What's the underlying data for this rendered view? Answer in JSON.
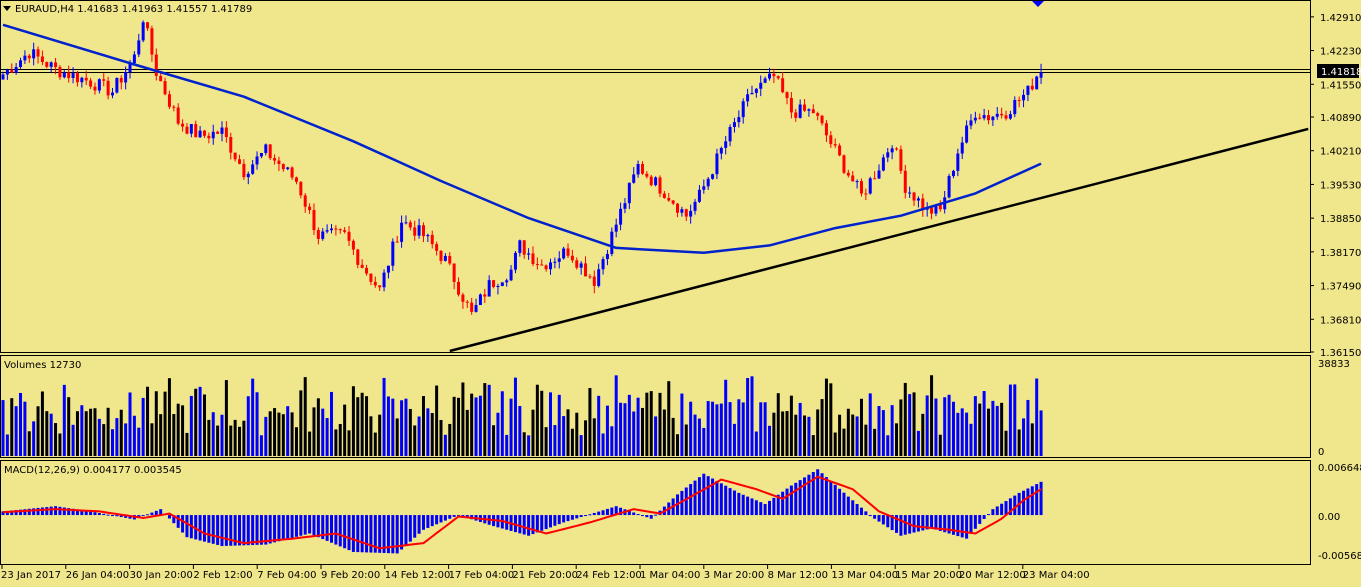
{
  "header": {
    "symbol_line": "EURAUD,H4  1.41683 1.41963 1.41557 1.41789"
  },
  "volume_panel": {
    "label": "Volumes 12730",
    "max_label": "38833",
    "zero_label": "0"
  },
  "macd_panel": {
    "label": "MACD(12,26,9) 0.004177 0.003545",
    "axis_labels": [
      "0.006648",
      "0.00",
      "-0.005685"
    ]
  },
  "price_axis": {
    "labels": [
      "1.42910",
      "1.42230",
      "1.41550",
      "1.40890",
      "1.40210",
      "1.39530",
      "1.38850",
      "1.38170",
      "1.37490",
      "1.36810",
      "1.36150"
    ],
    "current_price": "1.41818"
  },
  "time_axis": {
    "labels": [
      "23 Jan 2017",
      "26 Jan 04:00",
      "30 Jan 20:00",
      "2 Feb 12:00",
      "7 Feb 04:00",
      "9 Feb 20:00",
      "14 Feb 12:00",
      "17 Feb 04:00",
      "21 Feb 20:00",
      "24 Feb 12:00",
      "1 Mar 04:00",
      "3 Mar 20:00",
      "8 Mar 12:00",
      "13 Mar 04:00",
      "15 Mar 20:00",
      "20 Mar 12:00",
      "23 Mar 04:00"
    ]
  },
  "colors": {
    "background": "#F0E68C",
    "bull": "#0000FF",
    "bear": "#FF0000",
    "ma": "#0022CC",
    "trendline": "#000000",
    "macd_hist": "#0000FF",
    "macd_signal": "#FF0000"
  },
  "icons": {
    "collapse": "triangle-down-icon",
    "marker": "triangle-down-icon"
  },
  "chart_data": {
    "type": "candlestick",
    "symbol": "EURAUD",
    "timeframe": "H4",
    "ohlc_last": {
      "open": 1.41683,
      "high": 1.41963,
      "low": 1.41557,
      "close": 1.41789
    },
    "horizontal_line": 1.41818,
    "y_range": [
      1.3615,
      1.4325
    ],
    "anchors": [
      {
        "i": 0,
        "p": 1.4175
      },
      {
        "i": 6,
        "p": 1.422
      },
      {
        "i": 12,
        "p": 1.4185
      },
      {
        "i": 20,
        "p": 1.416
      },
      {
        "i": 25,
        "p": 1.414
      },
      {
        "i": 30,
        "p": 1.421
      },
      {
        "i": 32,
        "p": 1.429
      },
      {
        "i": 35,
        "p": 1.418
      },
      {
        "i": 40,
        "p": 1.408
      },
      {
        "i": 45,
        "p": 1.405
      },
      {
        "i": 50,
        "p": 1.406
      },
      {
        "i": 55,
        "p": 1.398
      },
      {
        "i": 60,
        "p": 1.402
      },
      {
        "i": 67,
        "p": 1.396
      },
      {
        "i": 72,
        "p": 1.385
      },
      {
        "i": 78,
        "p": 1.385
      },
      {
        "i": 82,
        "p": 1.379
      },
      {
        "i": 86,
        "p": 1.374
      },
      {
        "i": 91,
        "p": 1.388
      },
      {
        "i": 96,
        "p": 1.385
      },
      {
        "i": 101,
        "p": 1.38
      },
      {
        "i": 107,
        "p": 1.369
      },
      {
        "i": 111,
        "p": 1.375
      },
      {
        "i": 116,
        "p": 1.378
      },
      {
        "i": 118,
        "p": 1.383
      },
      {
        "i": 123,
        "p": 1.379
      },
      {
        "i": 129,
        "p": 1.382
      },
      {
        "i": 135,
        "p": 1.376
      },
      {
        "i": 139,
        "p": 1.385
      },
      {
        "i": 145,
        "p": 1.399
      },
      {
        "i": 152,
        "p": 1.393
      },
      {
        "i": 156,
        "p": 1.389
      },
      {
        "i": 159,
        "p": 1.393
      },
      {
        "i": 165,
        "p": 1.404
      },
      {
        "i": 171,
        "p": 1.414
      },
      {
        "i": 176,
        "p": 1.417
      },
      {
        "i": 180,
        "p": 1.41
      },
      {
        "i": 185,
        "p": 1.41
      },
      {
        "i": 190,
        "p": 1.402
      },
      {
        "i": 196,
        "p": 1.393
      },
      {
        "i": 200,
        "p": 1.399
      },
      {
        "i": 203,
        "p": 1.404
      },
      {
        "i": 206,
        "p": 1.395
      },
      {
        "i": 211,
        "p": 1.39
      },
      {
        "i": 214,
        "p": 1.39
      },
      {
        "i": 218,
        "p": 1.402
      },
      {
        "i": 222,
        "p": 1.41
      },
      {
        "i": 225,
        "p": 1.409
      },
      {
        "i": 229,
        "p": 1.41
      },
      {
        "i": 234,
        "p": 1.414
      },
      {
        "i": 237,
        "p": 1.419
      }
    ],
    "moving_average": [
      {
        "i": 0,
        "p": 1.4275
      },
      {
        "i": 30,
        "p": 1.4195
      },
      {
        "i": 55,
        "p": 1.413
      },
      {
        "i": 80,
        "p": 1.404
      },
      {
        "i": 100,
        "p": 1.396
      },
      {
        "i": 120,
        "p": 1.3885
      },
      {
        "i": 140,
        "p": 1.3825
      },
      {
        "i": 160,
        "p": 1.3815
      },
      {
        "i": 175,
        "p": 1.383
      },
      {
        "i": 190,
        "p": 1.3865
      },
      {
        "i": 205,
        "p": 1.389
      },
      {
        "i": 222,
        "p": 1.3935
      },
      {
        "i": 237,
        "p": 1.3995
      }
    ],
    "trendline": [
      {
        "i": 102,
        "p": 1.3617
      },
      {
        "i": 298,
        "p": 1.4065
      }
    ],
    "volume_range": [
      0,
      38833
    ],
    "macd_range": [
      -0.005685,
      0.006648
    ],
    "macd_histogram": [
      {
        "i": 0,
        "v": 0.0005
      },
      {
        "i": 12,
        "v": 0.0012
      },
      {
        "i": 20,
        "v": 0.0005
      },
      {
        "i": 30,
        "v": -0.0006
      },
      {
        "i": 36,
        "v": 0.0008
      },
      {
        "i": 42,
        "v": -0.003
      },
      {
        "i": 50,
        "v": -0.0042
      },
      {
        "i": 60,
        "v": -0.004
      },
      {
        "i": 70,
        "v": -0.0025
      },
      {
        "i": 80,
        "v": -0.005
      },
      {
        "i": 90,
        "v": -0.0052
      },
      {
        "i": 96,
        "v": -0.002
      },
      {
        "i": 104,
        "v": 0.0
      },
      {
        "i": 112,
        "v": -0.0015
      },
      {
        "i": 120,
        "v": -0.0028
      },
      {
        "i": 128,
        "v": -0.001
      },
      {
        "i": 140,
        "v": 0.0012
      },
      {
        "i": 148,
        "v": -0.0005
      },
      {
        "i": 154,
        "v": 0.0028
      },
      {
        "i": 160,
        "v": 0.0056
      },
      {
        "i": 168,
        "v": 0.003
      },
      {
        "i": 174,
        "v": 0.0015
      },
      {
        "i": 180,
        "v": 0.004
      },
      {
        "i": 186,
        "v": 0.0062
      },
      {
        "i": 193,
        "v": 0.0025
      },
      {
        "i": 199,
        "v": -0.0005
      },
      {
        "i": 205,
        "v": -0.0028
      },
      {
        "i": 212,
        "v": -0.0018
      },
      {
        "i": 220,
        "v": -0.0032
      },
      {
        "i": 226,
        "v": 0.0008
      },
      {
        "i": 232,
        "v": 0.003
      },
      {
        "i": 237,
        "v": 0.0045
      }
    ],
    "macd_signal": [
      {
        "i": 0,
        "v": 0.0004
      },
      {
        "i": 12,
        "v": 0.0008
      },
      {
        "i": 22,
        "v": 0.0005
      },
      {
        "i": 32,
        "v": -0.0004
      },
      {
        "i": 38,
        "v": 0.0002
      },
      {
        "i": 46,
        "v": -0.0025
      },
      {
        "i": 55,
        "v": -0.0038
      },
      {
        "i": 66,
        "v": -0.0032
      },
      {
        "i": 76,
        "v": -0.0025
      },
      {
        "i": 86,
        "v": -0.0045
      },
      {
        "i": 96,
        "v": -0.0038
      },
      {
        "i": 104,
        "v": -0.0002
      },
      {
        "i": 114,
        "v": -0.0008
      },
      {
        "i": 124,
        "v": -0.0025
      },
      {
        "i": 134,
        "v": -0.001
      },
      {
        "i": 144,
        "v": 0.0008
      },
      {
        "i": 150,
        "v": 0.0002
      },
      {
        "i": 158,
        "v": 0.0028
      },
      {
        "i": 164,
        "v": 0.0048
      },
      {
        "i": 172,
        "v": 0.0035
      },
      {
        "i": 178,
        "v": 0.0022
      },
      {
        "i": 186,
        "v": 0.0052
      },
      {
        "i": 194,
        "v": 0.0035
      },
      {
        "i": 200,
        "v": 0.0005
      },
      {
        "i": 208,
        "v": -0.0015
      },
      {
        "i": 216,
        "v": -0.002
      },
      {
        "i": 222,
        "v": -0.0025
      },
      {
        "i": 228,
        "v": -0.0005
      },
      {
        "i": 233,
        "v": 0.002
      },
      {
        "i": 237,
        "v": 0.0035
      }
    ]
  }
}
